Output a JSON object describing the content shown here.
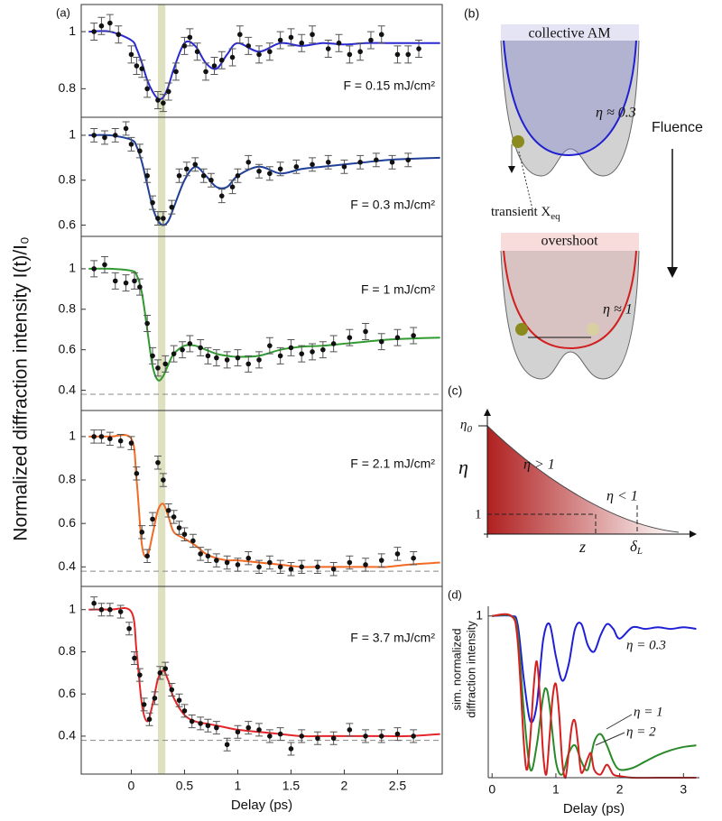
{
  "chart_data": [
    {
      "type": "scatter",
      "panel_label": "(a)",
      "annotation": "F = 0.15 mJ/cm²",
      "xlim": [
        -0.47,
        2.92
      ],
      "ylim": [
        0.7,
        1.095
      ],
      "yticks": [
        0.8,
        1
      ],
      "highlight": [
        0.25,
        0.32
      ],
      "series": [
        {
          "type": "line",
          "color": "#2a2ad0",
          "x": [
            -0.4,
            -0.2,
            0,
            0.05,
            0.1,
            0.15,
            0.2,
            0.25,
            0.3,
            0.35,
            0.4,
            0.5,
            0.6,
            0.7,
            0.8,
            0.9,
            1.0,
            1.2,
            1.4,
            1.6,
            1.8,
            2.0,
            2.2,
            2.4,
            2.6,
            2.9
          ],
          "values": [
            1.0,
            1.0,
            0.97,
            0.94,
            0.89,
            0.83,
            0.79,
            0.765,
            0.77,
            0.81,
            0.87,
            0.96,
            0.95,
            0.89,
            0.87,
            0.92,
            0.96,
            0.93,
            0.96,
            0.95,
            0.96,
            0.955,
            0.96,
            0.96,
            0.96,
            0.96
          ]
        },
        {
          "type": "scatter",
          "color": "#111111",
          "error": 0.03,
          "x": [
            -0.35,
            -0.28,
            -0.2,
            -0.12,
            0,
            0.05,
            0.1,
            0.15,
            0.25,
            0.3,
            0.35,
            0.42,
            0.5,
            0.55,
            0.62,
            0.7,
            0.78,
            0.85,
            0.95,
            1.02,
            1.1,
            1.2,
            1.3,
            1.4,
            1.5,
            1.6,
            1.7,
            1.85,
            1.95,
            2.05,
            2.15,
            2.25,
            2.35,
            2.5,
            2.6,
            2.7
          ],
          "values": [
            1.0,
            1.02,
            1.03,
            0.99,
            0.92,
            0.88,
            0.87,
            0.8,
            0.76,
            0.75,
            0.79,
            0.86,
            0.95,
            0.98,
            0.93,
            0.86,
            0.88,
            0.9,
            0.91,
            0.99,
            0.95,
            0.92,
            0.93,
            0.97,
            0.98,
            0.96,
            0.99,
            0.94,
            0.96,
            0.92,
            0.93,
            0.97,
            0.99,
            0.92,
            0.92,
            0.94
          ]
        }
      ]
    },
    {
      "type": "scatter",
      "annotation": "F = 0.3 mJ/cm²",
      "xlim": [
        -0.47,
        2.92
      ],
      "ylim": [
        0.55,
        1.08
      ],
      "yticks": [
        0.6,
        0.8,
        1
      ],
      "highlight": [
        0.25,
        0.32
      ],
      "series": [
        {
          "type": "line",
          "color": "#1f3f9a",
          "x": [
            -0.4,
            -0.2,
            0,
            0.05,
            0.1,
            0.15,
            0.2,
            0.25,
            0.3,
            0.35,
            0.4,
            0.5,
            0.6,
            0.7,
            0.8,
            0.9,
            1.0,
            1.2,
            1.4,
            1.6,
            1.8,
            2.0,
            2.2,
            2.4,
            2.6,
            2.9
          ],
          "values": [
            1.0,
            1.0,
            0.98,
            0.95,
            0.88,
            0.78,
            0.68,
            0.62,
            0.6,
            0.62,
            0.68,
            0.8,
            0.86,
            0.82,
            0.77,
            0.77,
            0.82,
            0.86,
            0.83,
            0.85,
            0.86,
            0.87,
            0.88,
            0.89,
            0.895,
            0.9
          ]
        },
        {
          "type": "scatter",
          "color": "#111111",
          "error": 0.03,
          "x": [
            -0.35,
            -0.25,
            -0.15,
            -0.05,
            0,
            0.08,
            0.15,
            0.2,
            0.25,
            0.3,
            0.38,
            0.45,
            0.52,
            0.6,
            0.68,
            0.75,
            0.85,
            0.95,
            1.0,
            1.1,
            1.2,
            1.3,
            1.4,
            1.55,
            1.7,
            1.85,
            2.0,
            2.15,
            2.3,
            2.45,
            2.6
          ],
          "values": [
            1.0,
            0.99,
            1.0,
            1.03,
            0.96,
            0.93,
            0.82,
            0.7,
            0.63,
            0.63,
            0.68,
            0.82,
            0.85,
            0.87,
            0.82,
            0.8,
            0.73,
            0.77,
            0.82,
            0.88,
            0.84,
            0.83,
            0.85,
            0.86,
            0.87,
            0.88,
            0.86,
            0.88,
            0.89,
            0.88,
            0.89
          ]
        }
      ]
    },
    {
      "type": "scatter",
      "annotation": "F = 1 mJ/cm²",
      "ylabel": "Normalized diffraction intensity I(t)/I₀",
      "xlim": [
        -0.47,
        2.92
      ],
      "ylim": [
        0.3,
        1.16
      ],
      "yticks": [
        0.4,
        0.6,
        0.8,
        1
      ],
      "highlight": [
        0.25,
        0.32
      ],
      "reference_line": 0.38,
      "series": [
        {
          "type": "line",
          "color": "#2f9a2f",
          "x": [
            -0.4,
            -0.2,
            0,
            0.05,
            0.1,
            0.15,
            0.2,
            0.25,
            0.3,
            0.35,
            0.4,
            0.5,
            0.6,
            0.7,
            0.8,
            0.9,
            1.0,
            1.2,
            1.4,
            1.6,
            1.8,
            2.0,
            2.2,
            2.4,
            2.6,
            2.9
          ],
          "values": [
            1.0,
            1.0,
            0.99,
            0.97,
            0.88,
            0.7,
            0.52,
            0.45,
            0.47,
            0.53,
            0.58,
            0.62,
            0.62,
            0.6,
            0.58,
            0.57,
            0.565,
            0.57,
            0.6,
            0.615,
            0.62,
            0.63,
            0.64,
            0.65,
            0.655,
            0.66
          ]
        },
        {
          "type": "scatter",
          "color": "#111111",
          "error": 0.04,
          "x": [
            -0.35,
            -0.25,
            -0.15,
            -0.05,
            0.03,
            0.08,
            0.15,
            0.2,
            0.25,
            0.32,
            0.4,
            0.48,
            0.55,
            0.65,
            0.72,
            0.8,
            0.9,
            1.0,
            1.1,
            1.2,
            1.3,
            1.4,
            1.5,
            1.6,
            1.7,
            1.8,
            1.9,
            2.05,
            2.2,
            2.35,
            2.5,
            2.65
          ],
          "values": [
            1.0,
            1.02,
            0.94,
            0.93,
            0.94,
            0.91,
            0.73,
            0.57,
            0.51,
            0.53,
            0.58,
            0.6,
            0.63,
            0.61,
            0.57,
            0.56,
            0.55,
            0.56,
            0.53,
            0.55,
            0.62,
            0.57,
            0.61,
            0.58,
            0.59,
            0.6,
            0.63,
            0.66,
            0.69,
            0.64,
            0.66,
            0.67
          ]
        }
      ]
    },
    {
      "type": "scatter",
      "annotation": "F = 2.1 mJ/cm²",
      "xlim": [
        -0.47,
        2.92
      ],
      "ylim": [
        0.31,
        1.12
      ],
      "yticks": [
        0.4,
        0.6,
        0.8,
        1
      ],
      "highlight": [
        0.25,
        0.32
      ],
      "reference_line": 0.38,
      "series": [
        {
          "type": "line",
          "color": "#f26a24",
          "x": [
            -0.4,
            -0.2,
            0,
            0.05,
            0.1,
            0.15,
            0.2,
            0.25,
            0.3,
            0.35,
            0.4,
            0.5,
            0.6,
            0.7,
            0.8,
            0.9,
            1.0,
            1.2,
            1.4,
            1.6,
            1.8,
            2.0,
            2.2,
            2.4,
            2.6,
            2.9
          ],
          "values": [
            1.0,
            1.0,
            0.99,
            0.8,
            0.5,
            0.45,
            0.55,
            0.66,
            0.69,
            0.63,
            0.56,
            0.53,
            0.5,
            0.46,
            0.44,
            0.43,
            0.43,
            0.42,
            0.41,
            0.4,
            0.4,
            0.4,
            0.4,
            0.4,
            0.41,
            0.42
          ]
        },
        {
          "type": "scatter",
          "color": "#111111",
          "error": 0.03,
          "x": [
            -0.35,
            -0.28,
            -0.2,
            -0.1,
            0,
            0.05,
            0.1,
            0.15,
            0.2,
            0.25,
            0.3,
            0.35,
            0.4,
            0.45,
            0.5,
            0.58,
            0.65,
            0.72,
            0.8,
            0.9,
            1.0,
            1.1,
            1.2,
            1.3,
            1.4,
            1.5,
            1.6,
            1.75,
            1.9,
            2.05,
            2.2,
            2.35,
            2.5,
            2.65
          ],
          "values": [
            1.0,
            1.0,
            0.99,
            0.98,
            0.97,
            0.83,
            0.56,
            0.45,
            0.62,
            0.88,
            0.8,
            0.66,
            0.63,
            0.58,
            0.55,
            0.52,
            0.46,
            0.45,
            0.43,
            0.42,
            0.41,
            0.44,
            0.4,
            0.42,
            0.4,
            0.39,
            0.4,
            0.4,
            0.39,
            0.42,
            0.41,
            0.43,
            0.46,
            0.44
          ]
        }
      ]
    },
    {
      "type": "scatter",
      "annotation": "F = 3.7 mJ/cm²",
      "xlabel": "Delay (ps)",
      "xlim": [
        -0.47,
        2.92
      ],
      "ylim": [
        0.22,
        1.11
      ],
      "yticks": [
        0.4,
        0.6,
        0.8,
        1
      ],
      "xticks": [
        0,
        0.5,
        1,
        1.5,
        2,
        2.5
      ],
      "highlight": [
        0.25,
        0.32
      ],
      "reference_line": 0.38,
      "series": [
        {
          "type": "line",
          "color": "#e3262a",
          "x": [
            -0.4,
            -0.2,
            0,
            0.05,
            0.1,
            0.15,
            0.2,
            0.25,
            0.3,
            0.35,
            0.4,
            0.5,
            0.6,
            0.7,
            0.8,
            0.9,
            1.0,
            1.2,
            1.4,
            1.6,
            1.8,
            2.0,
            2.2,
            2.4,
            2.6,
            2.9
          ],
          "values": [
            1.0,
            1.0,
            0.99,
            0.8,
            0.55,
            0.47,
            0.55,
            0.67,
            0.71,
            0.66,
            0.58,
            0.5,
            0.47,
            0.46,
            0.45,
            0.44,
            0.43,
            0.42,
            0.41,
            0.4,
            0.4,
            0.4,
            0.4,
            0.4,
            0.4,
            0.41
          ]
        },
        {
          "type": "scatter",
          "color": "#111111",
          "error": 0.03,
          "x": [
            -0.35,
            -0.28,
            -0.2,
            -0.1,
            -0.02,
            0.03,
            0.08,
            0.12,
            0.17,
            0.22,
            0.27,
            0.32,
            0.38,
            0.45,
            0.5,
            0.57,
            0.65,
            0.72,
            0.8,
            0.9,
            1.0,
            1.1,
            1.2,
            1.3,
            1.4,
            1.5,
            1.6,
            1.75,
            1.9,
            2.05,
            2.2,
            2.35,
            2.5,
            2.65
          ],
          "values": [
            1.03,
            1.0,
            1.0,
            0.99,
            0.91,
            0.77,
            0.69,
            0.55,
            0.48,
            0.58,
            0.7,
            0.72,
            0.62,
            0.57,
            0.52,
            0.47,
            0.46,
            0.45,
            0.44,
            0.36,
            0.42,
            0.44,
            0.43,
            0.4,
            0.41,
            0.34,
            0.4,
            0.39,
            0.39,
            0.43,
            0.4,
            0.4,
            0.41,
            0.4
          ]
        }
      ]
    },
    {
      "type": "line",
      "panel_label": "(d)",
      "xlabel": "Delay (ps)",
      "ylabel": [
        "sim. normalized",
        "diffraction intensity"
      ],
      "xlim": [
        -0.06,
        3.25
      ],
      "ylim": [
        0,
        1.06
      ],
      "xticks": [
        0,
        1,
        2,
        3
      ],
      "yticks": [
        1
      ],
      "series": [
        {
          "name": "η = 0.3",
          "color": "#1f1fd6",
          "x": [
            0,
            0.3,
            0.4,
            0.5,
            0.6,
            0.7,
            0.8,
            0.9,
            1.0,
            1.1,
            1.2,
            1.3,
            1.4,
            1.5,
            1.6,
            1.7,
            1.8,
            1.9,
            2.0,
            2.2,
            2.4,
            2.6,
            2.8,
            3.0,
            3.2
          ],
          "values": [
            1,
            1,
            0.95,
            0.6,
            0.35,
            0.45,
            0.85,
            0.95,
            0.75,
            0.6,
            0.7,
            0.92,
            0.95,
            0.82,
            0.78,
            0.88,
            0.95,
            0.92,
            0.86,
            0.93,
            0.92,
            0.93,
            0.92,
            0.93,
            0.92
          ]
        },
        {
          "name": "η = 1",
          "color": "#2a8a2a",
          "x": [
            0,
            0.3,
            0.4,
            0.5,
            0.6,
            0.7,
            0.8,
            0.85,
            0.9,
            1.0,
            1.1,
            1.2,
            1.3,
            1.4,
            1.5,
            1.6,
            1.7,
            1.8,
            1.9,
            2.0,
            2.2,
            2.4,
            2.6,
            2.8,
            3.0,
            3.2
          ],
          "values": [
            1,
            1,
            0.9,
            0.4,
            0.05,
            0.2,
            0.5,
            0.55,
            0.45,
            0.1,
            0.02,
            0.15,
            0.2,
            0.1,
            0.05,
            0.22,
            0.27,
            0.2,
            0.1,
            0.05,
            0.06,
            0.1,
            0.14,
            0.17,
            0.19,
            0.2
          ]
        },
        {
          "name": "η = 2",
          "color": "#d62020",
          "x": [
            0,
            0.3,
            0.4,
            0.5,
            0.55,
            0.6,
            0.65,
            0.7,
            0.75,
            0.8,
            0.85,
            0.9,
            0.95,
            1.0,
            1.05,
            1.1,
            1.15,
            1.2,
            1.25,
            1.3,
            1.35,
            1.4,
            1.5,
            1.55,
            1.6,
            1.7,
            1.8,
            1.9,
            2.0,
            2.2,
            2.6,
            3.2
          ],
          "values": [
            1,
            1,
            0.85,
            0.2,
            0.05,
            0.25,
            0.55,
            0.72,
            0.5,
            0.15,
            0.02,
            0.25,
            0.5,
            0.58,
            0.4,
            0.1,
            0.0,
            0.15,
            0.32,
            0.35,
            0.2,
            0.03,
            0.12,
            0.15,
            0.05,
            0.02,
            0.08,
            0.02,
            0.01,
            0.0,
            0.0,
            0.0
          ]
        }
      ]
    }
  ],
  "diagram_b": {
    "label": "(b)",
    "top_title": "collective AM",
    "top_eta": "η ≈ 0.3",
    "arrow_label": "Fluence",
    "transient": "transient X",
    "transient_sub": "eq",
    "bottom_title": "overshoot",
    "bottom_eta": "η ≈ 1"
  },
  "diagram_c": {
    "label": "(c)",
    "axis_y": "η",
    "eta0": "η",
    "eta0_sub": "0",
    "above": "η > 1",
    "below": "η < 1",
    "one": "1",
    "axis_x": "z",
    "delta": "δ",
    "delta_sub": "L"
  }
}
